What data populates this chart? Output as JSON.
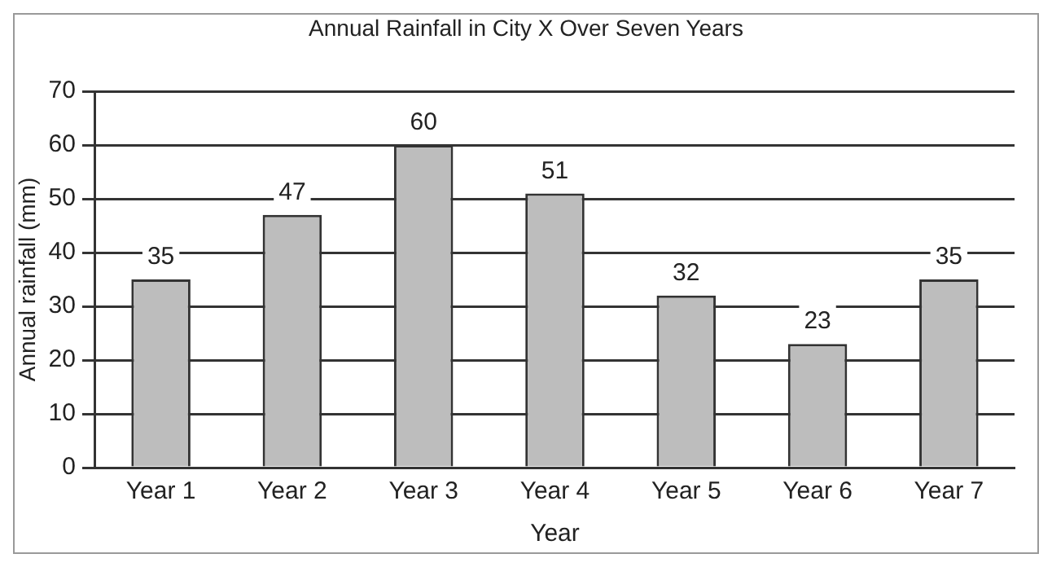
{
  "chart_data": {
    "type": "bar",
    "title": "Annual Rainfall in City X Over Seven Years",
    "xlabel": "Year",
    "ylabel": "Annual rainfall (mm)",
    "categories": [
      "Year 1",
      "Year 2",
      "Year 3",
      "Year 4",
      "Year 5",
      "Year 6",
      "Year 7"
    ],
    "values": [
      35,
      47,
      60,
      51,
      32,
      23,
      35
    ],
    "color": "#bdbdbd",
    "ylim": [
      0,
      70
    ],
    "yticks": [
      0,
      10,
      20,
      30,
      40,
      50,
      60,
      70
    ],
    "grid": "y",
    "data_labels": true
  }
}
